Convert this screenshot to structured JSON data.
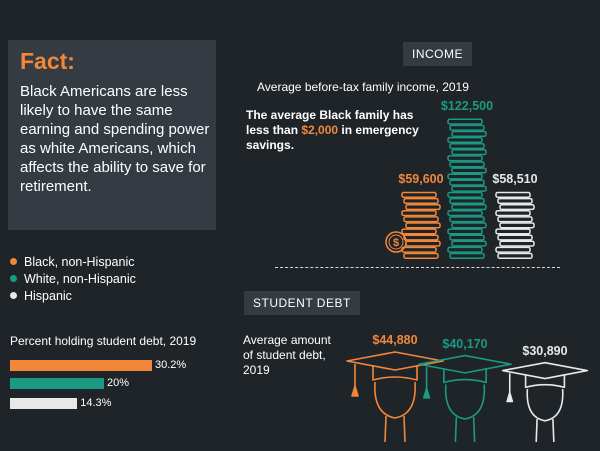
{
  "fact": {
    "title": "Fact:",
    "body": "Black Americans are less likely to have the same earning and spending power as white Americans, which affects the ability to save for retirement."
  },
  "legend": [
    {
      "label": "Black, non-Hispanic",
      "color": "#f2873a"
    },
    {
      "label": "White, non-Hispanic",
      "color": "#1a9a82"
    },
    {
      "label": "Hispanic",
      "color": "#e8e8e8"
    }
  ],
  "income": {
    "tag": "INCOME",
    "subtitle": "Average before-tax family income, 2019",
    "callout_pre": "The average Black family has less than ",
    "callout_highlight": "$2,000",
    "callout_post": " in emergency savings.",
    "coin_icon": "dollar-coin-icon"
  },
  "student_debt": {
    "tag": "STUDENT DEBT",
    "amount_label": "Average amount of student debt, 2019",
    "percent_label": "Percent holding student debt, 2019",
    "cap_icon": "graduate-cap-icon"
  },
  "chart_data": [
    {
      "type": "bar",
      "title": "Average before-tax family income, 2019",
      "categories": [
        "Black, non-Hispanic",
        "White, non-Hispanic",
        "Hispanic"
      ],
      "values": [
        59600,
        122500,
        58510
      ],
      "labels": [
        "$59,600",
        "$122,500",
        "$58,510"
      ],
      "colors": [
        "#f2873a",
        "#1a9a82",
        "#e8e8e8"
      ]
    },
    {
      "type": "bar",
      "title": "Percent holding student debt, 2019",
      "categories": [
        "Black, non-Hispanic",
        "White, non-Hispanic",
        "Hispanic"
      ],
      "values": [
        30.2,
        20,
        14.3
      ],
      "labels": [
        "30.2%",
        "20%",
        "14.3%"
      ],
      "colors": [
        "#f2873a",
        "#1a9a82",
        "#e8e8e8"
      ]
    },
    {
      "type": "bar",
      "title": "Average amount of student debt, 2019",
      "categories": [
        "Black, non-Hispanic",
        "White, non-Hispanic",
        "Hispanic"
      ],
      "values": [
        44880,
        40170,
        30890
      ],
      "labels": [
        "$44,880",
        "$40,170",
        "$30,890"
      ],
      "colors": [
        "#f2873a",
        "#1a9a82",
        "#e8e8e8"
      ]
    }
  ]
}
